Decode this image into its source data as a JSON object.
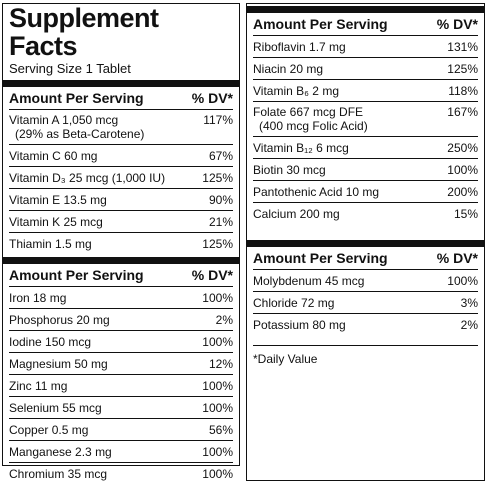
{
  "left": {
    "title": "Supplement Facts",
    "serving_size": "Serving Size 1 Tablet",
    "sections": [
      {
        "header": {
          "amount": "Amount Per Serving",
          "dv": "% DV*"
        },
        "rows": [
          {
            "name": "Vitamin A 1,050 mcg",
            "note": "(29% as Beta-Carotene)",
            "dv": "117%"
          },
          {
            "name": "Vitamin C 60 mg",
            "dv": "67%"
          },
          {
            "name": "Vitamin D₃ 25 mcg (1,000 IU)",
            "dv": "125%"
          },
          {
            "name": "Vitamin E 13.5 mg",
            "dv": "90%"
          },
          {
            "name": "Vitamin K 25 mcg",
            "dv": "21%"
          },
          {
            "name": "Thiamin 1.5 mg",
            "dv": "125%"
          }
        ]
      },
      {
        "header": {
          "amount": "Amount Per Serving",
          "dv": "% DV*"
        },
        "rows": [
          {
            "name": "Iron 18 mg",
            "dv": "100%"
          },
          {
            "name": "Phosphorus 20 mg",
            "dv": "2%"
          },
          {
            "name": "Iodine 150 mcg",
            "dv": "100%"
          },
          {
            "name": "Magnesium 50 mg",
            "dv": "12%"
          },
          {
            "name": "Zinc 11 mg",
            "dv": "100%"
          },
          {
            "name": "Selenium 55 mcg",
            "dv": "100%"
          },
          {
            "name": "Copper 0.5 mg",
            "dv": "56%"
          },
          {
            "name": "Manganese 2.3 mg",
            "dv": "100%"
          },
          {
            "name": "Chromium 35 mcg",
            "dv": "100%"
          }
        ]
      }
    ]
  },
  "right": {
    "sections": [
      {
        "header": {
          "amount": "Amount Per Serving",
          "dv": "% DV*"
        },
        "rows": [
          {
            "name": "Riboflavin 1.7 mg",
            "dv": "131%"
          },
          {
            "name": "Niacin 20 mg",
            "dv": "125%"
          },
          {
            "name": "Vitamin B₆ 2 mg",
            "dv": "118%"
          },
          {
            "name": "Folate 667 mcg DFE",
            "note": "(400 mcg Folic Acid)",
            "dv": "167%"
          },
          {
            "name": "Vitamin B₁₂ 6 mcg",
            "dv": "250%"
          },
          {
            "name": "Biotin 30 mcg",
            "dv": "100%"
          },
          {
            "name": "Pantothenic Acid 10 mg",
            "dv": "200%"
          },
          {
            "name": "Calcium 200 mg",
            "dv": "15%"
          }
        ]
      },
      {
        "header": {
          "amount": "Amount Per Serving",
          "dv": "% DV*"
        },
        "rows": [
          {
            "name": "Molybdenum 45 mcg",
            "dv": "100%"
          },
          {
            "name": "Chloride 72 mg",
            "dv": "3%"
          },
          {
            "name": "Potassium 80 mg",
            "dv": "2%"
          }
        ]
      }
    ],
    "footnote": "*Daily Value"
  }
}
